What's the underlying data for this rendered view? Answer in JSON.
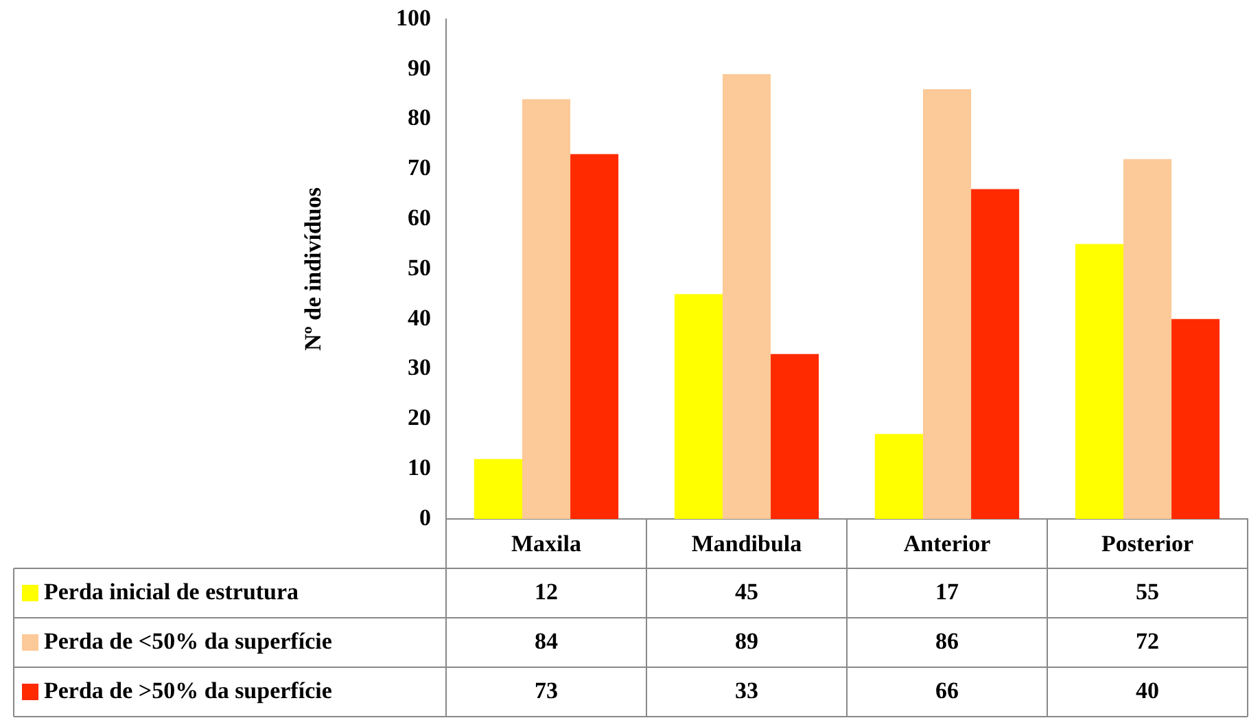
{
  "chart_data": {
    "type": "bar",
    "ylabel": "Nº de indivíduos",
    "categories": [
      "Maxila",
      "Mandibula",
      "Anterior",
      "Posterior"
    ],
    "series": [
      {
        "name": "Perda inicial de estrutura",
        "color": "#ffff00",
        "values": [
          12,
          45,
          17,
          55
        ]
      },
      {
        "name": "Perda de <50% da superfície",
        "color": "#fcc998",
        "values": [
          84,
          89,
          86,
          72
        ]
      },
      {
        "name": "Perda de >50% da superfície",
        "color": "#ff2a00",
        "values": [
          73,
          33,
          66,
          40
        ]
      }
    ],
    "ylim": [
      0,
      100
    ],
    "yticks": [
      0,
      10,
      20,
      30,
      40,
      50,
      60,
      70,
      80,
      90,
      100
    ],
    "grid": false,
    "legend": "bottom",
    "data_labels": true
  }
}
